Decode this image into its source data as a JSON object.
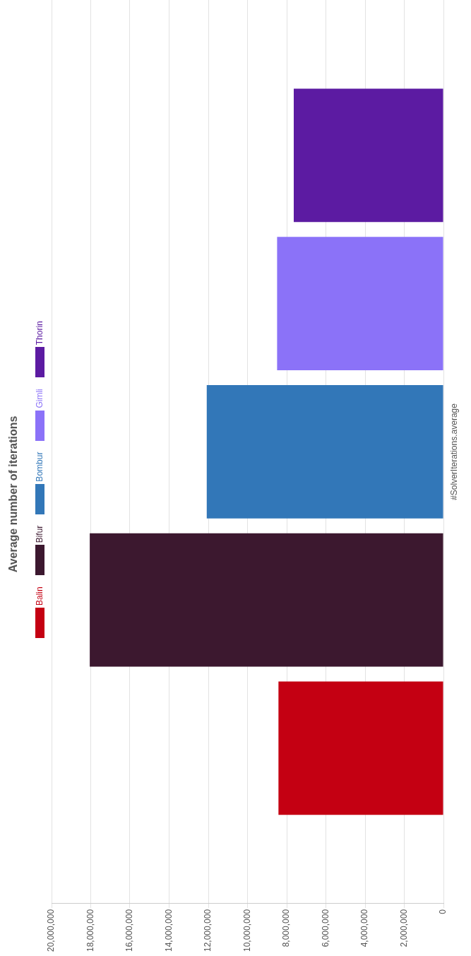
{
  "chart_data": {
    "type": "bar",
    "orientation": "horizontal",
    "title": "Average number of iterations",
    "categories": [
      "#SolverIterations.average"
    ],
    "series": [
      {
        "name": "Balin",
        "color": "#c40012",
        "values": [
          8420000
        ]
      },
      {
        "name": "Bifur",
        "color": "#3c182f",
        "values": [
          18050000
        ]
      },
      {
        "name": "Bombur",
        "color": "#3277b8",
        "values": [
          12080000
        ]
      },
      {
        "name": "Gimli",
        "color": "#8b72f8",
        "values": [
          8490000
        ]
      },
      {
        "name": "Thorin",
        "color": "#5c1ba2",
        "values": [
          7640000
        ]
      }
    ],
    "xlim": [
      20000000,
      0
    ],
    "xticks": [
      {
        "value": 0,
        "label": "0"
      },
      {
        "value": 2000000,
        "label": "2,000,000"
      },
      {
        "value": 4000000,
        "label": "4,000,000"
      },
      {
        "value": 6000000,
        "label": "6,000,000"
      },
      {
        "value": 8000000,
        "label": "8,000,000"
      },
      {
        "value": 10000000,
        "label": "10,000,000"
      },
      {
        "value": 12000000,
        "label": "12,000,000"
      },
      {
        "value": 14000000,
        "label": "14,000,000"
      },
      {
        "value": 16000000,
        "label": "16,000,000"
      },
      {
        "value": 18000000,
        "label": "18,000,000"
      },
      {
        "value": 20000000,
        "label": "20,000,000"
      }
    ],
    "grid": "x",
    "legend": "left"
  }
}
